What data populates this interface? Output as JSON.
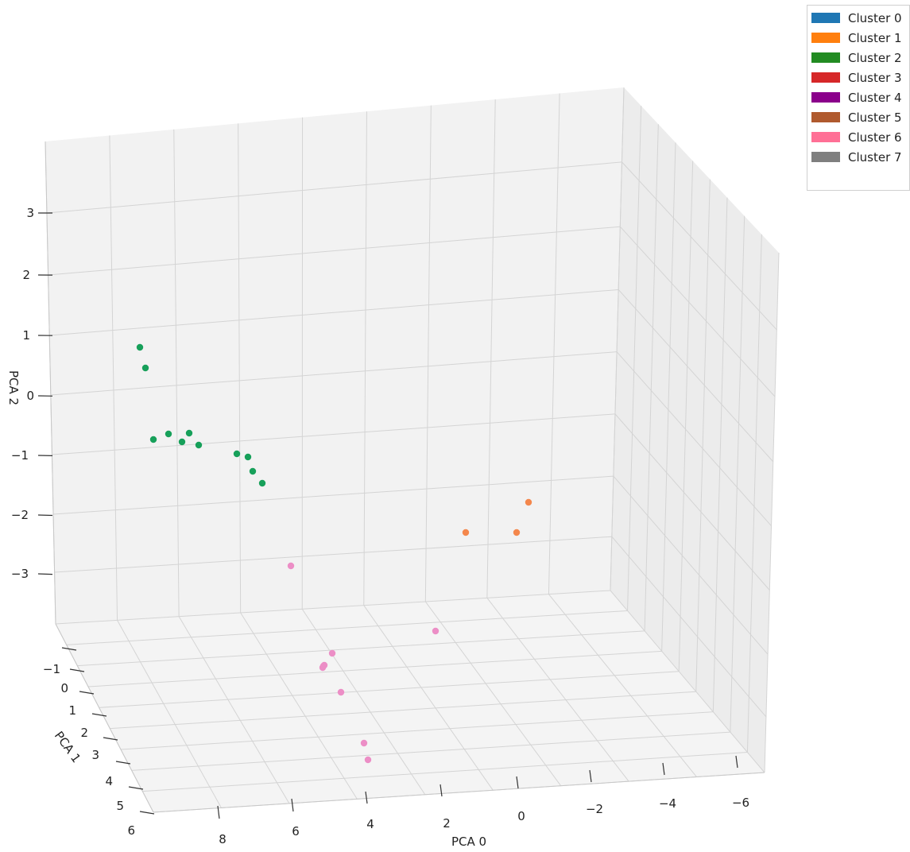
{
  "chart_data": {
    "type": "scatter",
    "projection": "3d",
    "xlabel": "PCA 0",
    "ylabel": "PCA 1",
    "zlabel": "PCA 2",
    "x_ticks": [
      "8",
      "6",
      "4",
      "2",
      "0",
      "−2",
      "−4",
      "−6"
    ],
    "y_ticks": [
      "−1",
      "0",
      "1",
      "2",
      "3",
      "4",
      "5",
      "6"
    ],
    "z_ticks": [
      "3",
      "2",
      "1",
      "0",
      "−1",
      "−2",
      "−3"
    ],
    "grid": true,
    "legend_position": "top-right",
    "legend": [
      {
        "label": "Cluster 0",
        "color": "#1f77b4"
      },
      {
        "label": "Cluster 1",
        "color": "#ff7f0e"
      },
      {
        "label": "Cluster 2",
        "color": "#228b22"
      },
      {
        "label": "Cluster 3",
        "color": "#d62728"
      },
      {
        "label": "Cluster 4",
        "color": "#8b008b"
      },
      {
        "label": "Cluster 5",
        "color": "#b05a2e"
      },
      {
        "label": "Cluster 6",
        "color": "#ff7096"
      },
      {
        "label": "Cluster 7",
        "color": "#7f7f7f"
      }
    ],
    "point_colors": {
      "Cluster 0": "#3570b4",
      "Cluster 1": "#f4874c",
      "Cluster 2": "#17a05a",
      "Cluster 3": "#de4b4b",
      "Cluster 4": "#8a6fb8",
      "Cluster 5": "#9c7463",
      "Cluster 6": "#ec8ec6",
      "Cluster 7": "#8c8c8c"
    }
  }
}
